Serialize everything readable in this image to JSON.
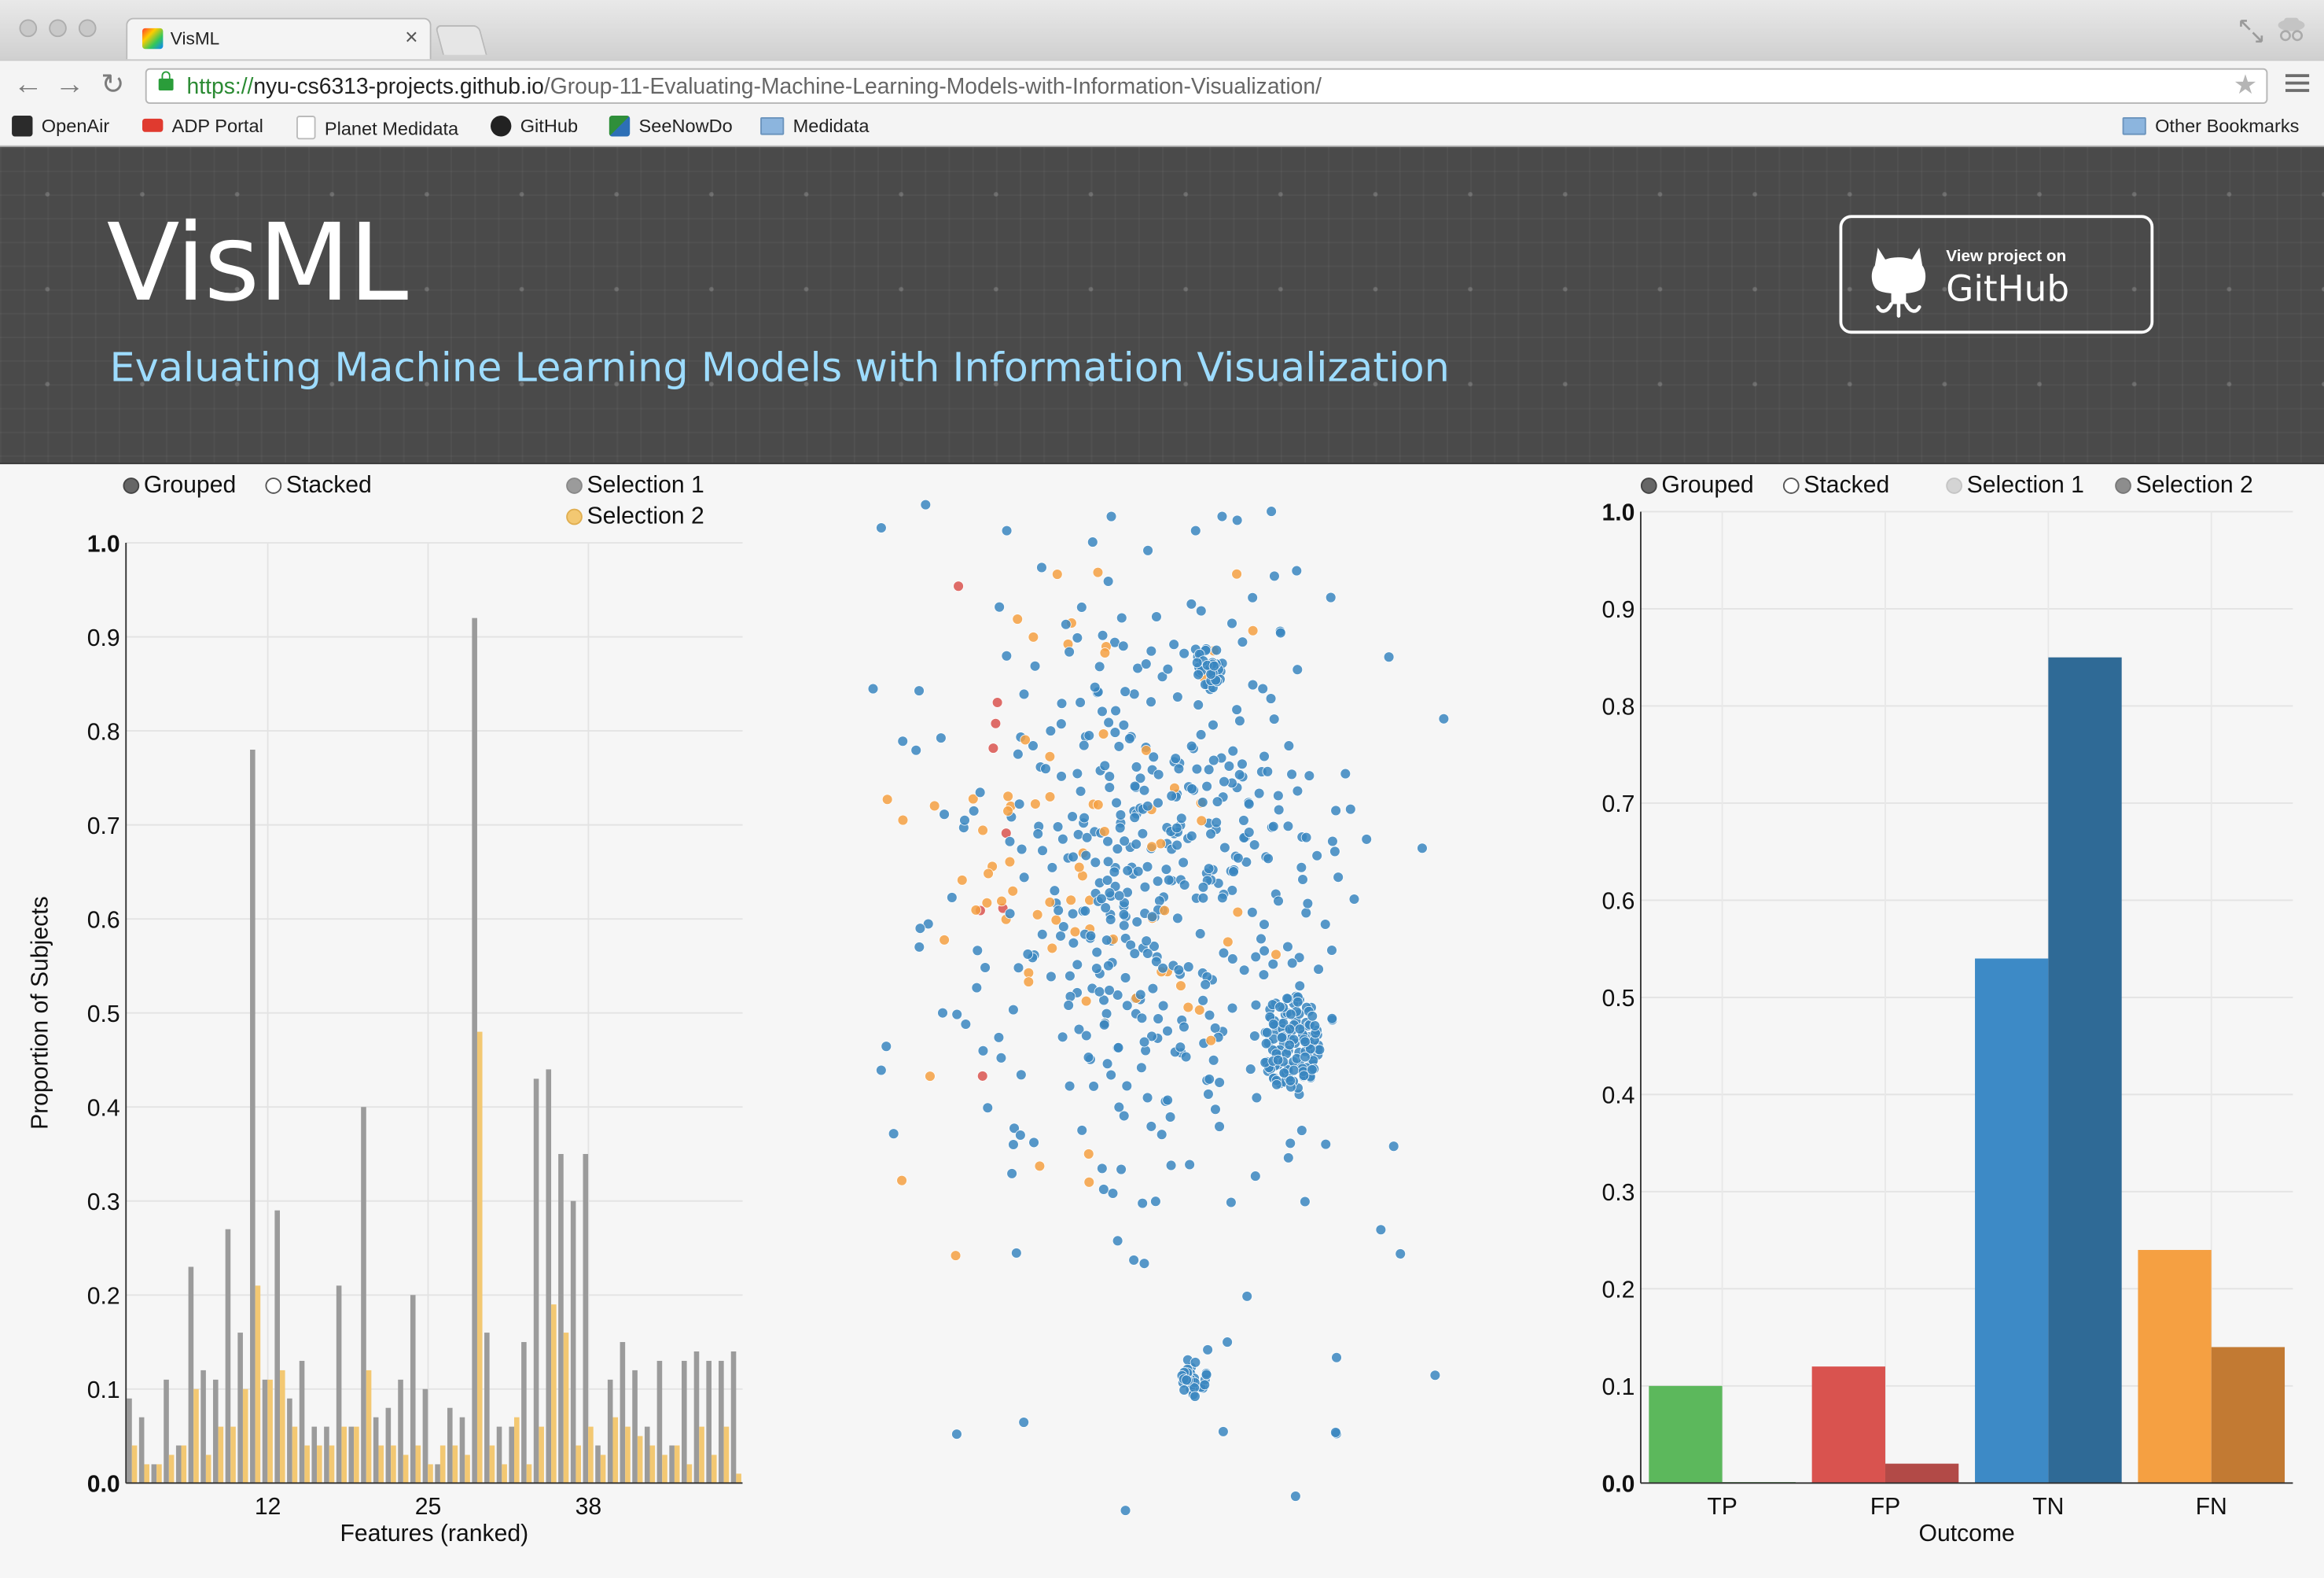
{
  "browser": {
    "tab_title": "VisML",
    "tab_close": "×",
    "url_scheme": "https://",
    "url_host": "nyu-cs6313-projects.github.io",
    "url_path": "/Group-11-Evaluating-Machine-Learning-Models-with-Information-Visualization/",
    "bookmarks": [
      {
        "label": "OpenAir",
        "icon": "openair-icon"
      },
      {
        "label": "ADP Portal",
        "icon": "adp-icon"
      },
      {
        "label": "Planet Medidata",
        "icon": "page-icon"
      },
      {
        "label": "GitHub",
        "icon": "github-icon"
      },
      {
        "label": "SeeNowDo",
        "icon": "seenowdo-icon"
      },
      {
        "label": "Medidata",
        "icon": "folder-icon"
      }
    ],
    "other_bookmarks": "Other Bookmarks"
  },
  "header": {
    "title": "VisML",
    "subtitle": "Evaluating Machine Learning Models with Information Visualization",
    "github_small": "View project on",
    "github_big": "GitHub"
  },
  "left_controls": {
    "grouped": "Grouped",
    "stacked": "Stacked",
    "selection1": "Selection 1",
    "selection2": "Selection 2"
  },
  "right_controls": {
    "grouped": "Grouped",
    "stacked": "Stacked",
    "selection1": "Selection 1",
    "selection2": "Selection 2"
  },
  "colors": {
    "selection1_bar": "#9b9b9b",
    "selection2_bar": "#f3c872",
    "tp": "#5cb85c",
    "fp": "#d9534f",
    "tn": "#3d8ac6",
    "fn": "#f5a042",
    "scatter_blue": "#3a86c0",
    "scatter_orange": "#f5a042",
    "scatter_red": "#d9534f",
    "scatter_green": "#5cb85c"
  },
  "chart_data": [
    {
      "type": "bar",
      "mode": "grouped",
      "xlabel": "Features (ranked)",
      "ylabel": "Proportion of Subjects",
      "ylim": [
        0,
        1.0
      ],
      "yticks": [
        "0.0",
        "0.1",
        "0.2",
        "0.3",
        "0.4",
        "0.5",
        "0.6",
        "0.7",
        "0.8",
        "0.9",
        "1.0"
      ],
      "xticks": [
        {
          "value": 12,
          "label": "12"
        },
        {
          "value": 25,
          "label": "25"
        },
        {
          "value": 38,
          "label": "38"
        }
      ],
      "legend": "top",
      "grid": true,
      "categories": [
        1,
        2,
        3,
        4,
        5,
        6,
        7,
        8,
        9,
        10,
        11,
        12,
        13,
        14,
        15,
        16,
        17,
        18,
        19,
        20,
        21,
        22,
        23,
        24,
        25,
        26,
        27,
        28,
        29,
        30,
        31,
        32,
        33,
        34,
        35,
        36,
        37,
        38,
        39,
        40,
        41,
        42,
        43,
        44,
        45,
        46,
        47,
        48,
        49,
        50
      ],
      "series": [
        {
          "name": "Selection 1",
          "values": [
            0.09,
            0.07,
            0.02,
            0.11,
            0.04,
            0.23,
            0.12,
            0.11,
            0.27,
            0.16,
            0.78,
            0.11,
            0.29,
            0.09,
            0.13,
            0.06,
            0.06,
            0.21,
            0.06,
            0.4,
            0.07,
            0.08,
            0.11,
            0.2,
            0.1,
            0.02,
            0.08,
            0.07,
            0.92,
            0.16,
            0.06,
            0.06,
            0.15,
            0.43,
            0.44,
            0.35,
            0.3,
            0.35,
            0.04,
            0.11,
            0.15,
            0.12,
            0.06,
            0.13,
            0.04,
            0.13,
            0.14,
            0.13,
            0.13,
            0.14
          ]
        },
        {
          "name": "Selection 2",
          "values": [
            0.04,
            0.02,
            0.02,
            0.03,
            0.04,
            0.1,
            0.03,
            0.06,
            0.06,
            0.1,
            0.21,
            0.11,
            0.12,
            0.06,
            0.04,
            0.04,
            0.04,
            0.06,
            0.06,
            0.12,
            0.04,
            0.04,
            0.03,
            0.04,
            0.02,
            0.04,
            0.04,
            0.03,
            0.48,
            0.04,
            0.02,
            0.07,
            0.02,
            0.06,
            0.19,
            0.16,
            0.04,
            0.06,
            0.03,
            0.07,
            0.06,
            0.05,
            0.04,
            0.03,
            0.04,
            0.02,
            0.06,
            0.03,
            0.06,
            0.01
          ]
        }
      ]
    },
    {
      "type": "scatter",
      "legend": "none",
      "grid": false,
      "color_encoding": [
        "TN",
        "FN",
        "FP",
        "TP"
      ]
    },
    {
      "type": "bar",
      "mode": "grouped",
      "xlabel": "Outcome",
      "ylabel": "",
      "ylim": [
        0,
        1.0
      ],
      "yticks": [
        "0.0",
        "0.1",
        "0.2",
        "0.3",
        "0.4",
        "0.5",
        "0.6",
        "0.7",
        "0.8",
        "0.9",
        "1.0"
      ],
      "categories": [
        "TP",
        "FP",
        "TN",
        "FN"
      ],
      "legend": "top",
      "grid": true,
      "series": [
        {
          "name": "Selection 1",
          "values": [
            0.1,
            0.12,
            0.54,
            0.24
          ]
        },
        {
          "name": "Selection 2",
          "values": [
            0.001,
            0.02,
            0.85,
            0.14
          ]
        }
      ]
    }
  ]
}
